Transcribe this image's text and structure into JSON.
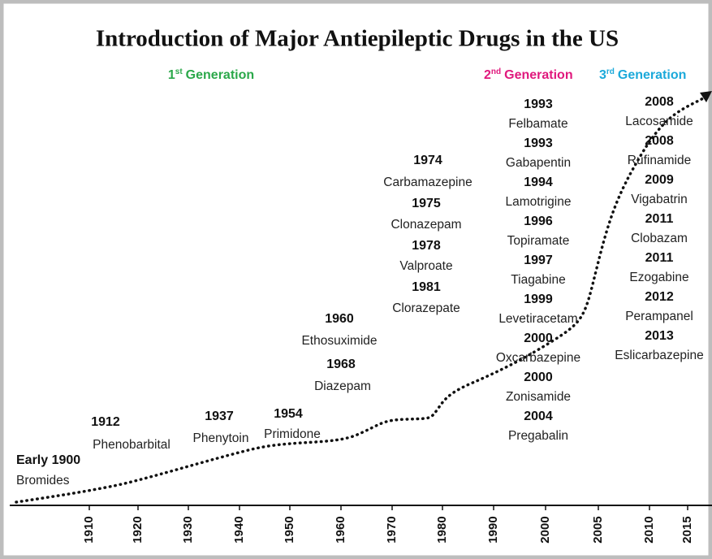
{
  "title": "Introduction of Major Antiepileptic Drugs in the US",
  "generations": [
    {
      "ordinal": "1",
      "suffix": "st",
      "label": "Generation",
      "color": "#2ba84a"
    },
    {
      "ordinal": "2",
      "suffix": "nd",
      "label": "Generation",
      "color": "#e0197d"
    },
    {
      "ordinal": "3",
      "suffix": "rd",
      "label": "Generation",
      "color": "#1ba9da"
    }
  ],
  "drugs": [
    {
      "year": "Early 1900",
      "name": "Bromides"
    },
    {
      "year": "1912",
      "name": "Phenobarbital"
    },
    {
      "year": "1937",
      "name": "Phenytoin"
    },
    {
      "year": "1954",
      "name": "Primidone"
    },
    {
      "year": "1960",
      "name": "Ethosuximide"
    },
    {
      "year": "1968",
      "name": "Diazepam"
    },
    {
      "year": "1974",
      "name": "Carbamazepine"
    },
    {
      "year": "1975",
      "name": "Clonazepam"
    },
    {
      "year": "1978",
      "name": "Valproate"
    },
    {
      "year": "1981",
      "name": "Clorazepate"
    },
    {
      "year": "1993",
      "name": "Felbamate"
    },
    {
      "year": "1993",
      "name": "Gabapentin"
    },
    {
      "year": "1994",
      "name": "Lamotrigine"
    },
    {
      "year": "1996",
      "name": "Topiramate"
    },
    {
      "year": "1997",
      "name": "Tiagabine"
    },
    {
      "year": "1999",
      "name": "Levetiracetam"
    },
    {
      "year": "2000",
      "name": "Oxcarbazepine"
    },
    {
      "year": "2000",
      "name": "Zonisamide"
    },
    {
      "year": "2004",
      "name": "Pregabalin"
    },
    {
      "year": "2008",
      "name": "Lacosamide"
    },
    {
      "year": "2008",
      "name": "Rufinamide"
    },
    {
      "year": "2009",
      "name": "Vigabatrin"
    },
    {
      "year": "2011",
      "name": "Clobazam"
    },
    {
      "year": "2011",
      "name": "Ezogabine"
    },
    {
      "year": "2012",
      "name": "Perampanel"
    },
    {
      "year": "2013",
      "name": "Eslicarbazepine"
    }
  ],
  "axis_ticks": [
    "1910",
    "1920",
    "1930",
    "1940",
    "1950",
    "1960",
    "1970",
    "1980",
    "1990",
    "2000",
    "2005",
    "2010",
    "2015"
  ]
}
